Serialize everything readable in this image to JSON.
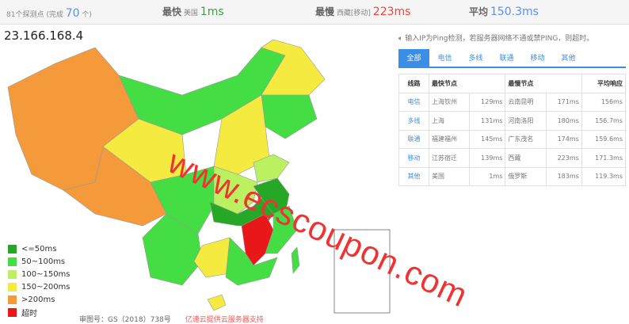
{
  "summary": {
    "count_text": "81个探测点 (完成",
    "completed": "70",
    "count_suffix": "个)",
    "fastest_label": "最快",
    "fastest_loc": "美国",
    "fastest_val": "1ms",
    "slowest_label": "最慢",
    "slowest_loc": "西藏[移动]",
    "slowest_val": "223ms",
    "avg_label": "平均",
    "avg_val": "150.3ms"
  },
  "ip": "23.166.168.4",
  "notice": "输入IP为Ping检测，若服务器网络不通或禁PING，则超时。",
  "tabs": [
    "全部",
    "电信",
    "多线",
    "联通",
    "移动",
    "其他"
  ],
  "table": {
    "headers": [
      "线路",
      "最快节点",
      "",
      "最慢节点",
      "",
      "平均响应"
    ],
    "rows": [
      [
        "电信",
        "上海钦州",
        "129ms",
        "云南昆明",
        "171ms",
        "156ms"
      ],
      [
        "多线",
        "上海",
        "131ms",
        "河南洛阳",
        "180ms",
        "156.7ms"
      ],
      [
        "联通",
        "福建福州",
        "145ms",
        "广东茂名",
        "174ms",
        "159.6ms"
      ],
      [
        "移动",
        "江苏宿迁",
        "139ms",
        "西藏",
        "223ms",
        "171.3ms"
      ],
      [
        "其他",
        "美国",
        "1ms",
        "俄罗斯",
        "183ms",
        "119.3ms"
      ]
    ]
  },
  "legend": [
    {
      "label": "<=50ms",
      "color": "#26a826"
    },
    {
      "label": "50~100ms",
      "color": "#44dd44"
    },
    {
      "label": "100~150ms",
      "color": "#bbf060"
    },
    {
      "label": "150~200ms",
      "color": "#f5ea40"
    },
    {
      "label": ">200ms",
      "color": "#f59a3a"
    },
    {
      "label": "超时",
      "color": "#e81818"
    }
  ],
  "footer": {
    "map_no": "审图号：GS（2018）738号",
    "sponsor": "亿速云提供云服务器支持"
  },
  "watermark": "www.ecscoupon.com",
  "colors": {
    "accent": "#3a8ee6",
    "fast": "#3aa33a",
    "slow": "#f0433a",
    "avg": "#5b8ff0"
  }
}
